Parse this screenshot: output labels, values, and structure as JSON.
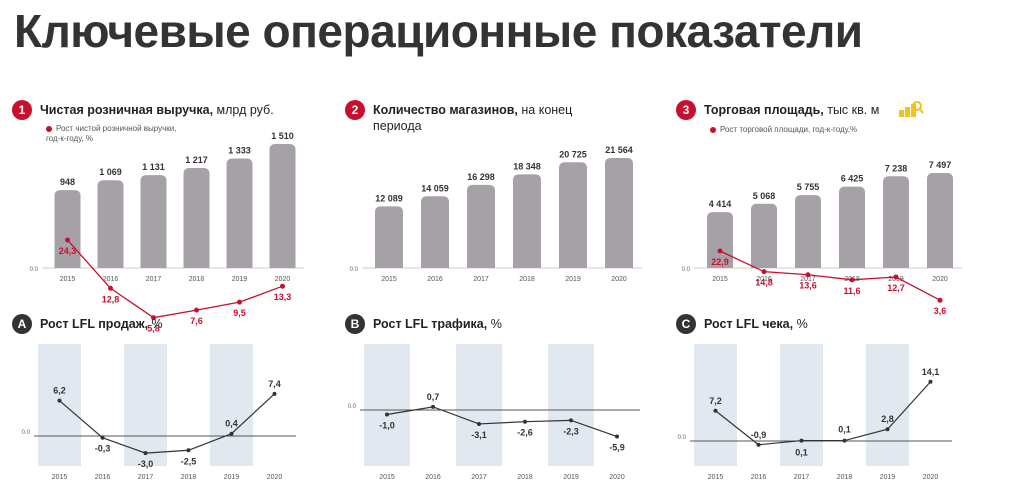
{
  "page_title": "Ключевые операционные показатели",
  "colors": {
    "accent": "#c8102e",
    "bar": "#a5a1a6",
    "band": "#e2e8ef",
    "line": "#333333",
    "badge_dark": "#333333"
  },
  "charts": [
    {
      "id": "1",
      "badge_style": "red",
      "title_bold": "Чистая розничная выручка,",
      "title_rest": " млрд руб.",
      "legend": "Рост чистой розничной выручки, год-к-году, %",
      "type": "bar_line",
      "categories": [
        "2015",
        "2016",
        "2017",
        "2018",
        "2019",
        "2020"
      ],
      "bar_labels": [
        "948",
        "1 069",
        "1 131",
        "1 217",
        "1 333",
        "1 510"
      ],
      "bar_values": [
        948,
        1069,
        1131,
        1217,
        1333,
        1510
      ],
      "line_labels": [
        "24,3",
        "12,8",
        "5,8",
        "7,6",
        "9,5",
        "13,3"
      ],
      "line_values": [
        24.3,
        12.8,
        5.8,
        7.6,
        9.5,
        13.3
      ],
      "zero_label": "0.0"
    },
    {
      "id": "2",
      "badge_style": "red",
      "title_bold": "Количество магазинов,",
      "title_rest": " на конец периода",
      "type": "bar",
      "categories": [
        "2015",
        "2016",
        "2017",
        "2018",
        "2019",
        "2020"
      ],
      "bar_labels": [
        "12 089",
        "14 059",
        "16 298",
        "18 348",
        "20 725",
        "21 564"
      ],
      "bar_values": [
        12089,
        14059,
        16298,
        18348,
        20725,
        21564
      ],
      "zero_label": "0.0"
    },
    {
      "id": "3",
      "badge_style": "red",
      "title_bold": "Торговая площадь,",
      "title_rest": " тыс кв. м",
      "legend": "Рост торговой площади, год-к-году,%",
      "icon": "coins-icon",
      "type": "bar_line",
      "categories": [
        "2015",
        "2016",
        "2017",
        "2018",
        "2019",
        "2020"
      ],
      "bar_labels": [
        "4 414",
        "5 068",
        "5 755",
        "6 425",
        "7 238",
        "7 497"
      ],
      "bar_values": [
        4414,
        5068,
        5755,
        6425,
        7238,
        7497
      ],
      "line_labels": [
        "22,9",
        "14,8",
        "13,6",
        "11,6",
        "12,7",
        "3,6"
      ],
      "line_values": [
        22.9,
        14.8,
        13.6,
        11.6,
        12.7,
        3.6
      ],
      "zero_label": "0.0"
    },
    {
      "id": "A",
      "badge_style": "dark",
      "title_bold": "Рост LFL продаж,",
      "title_rest": " %",
      "type": "line",
      "categories": [
        "2015",
        "2016",
        "2017",
        "2018",
        "2019",
        "2020"
      ],
      "line_labels": [
        "6,2",
        "-0,3",
        "-3,0",
        "-2,5",
        "0,4",
        "7,4"
      ],
      "line_values": [
        6.2,
        -0.3,
        -3.0,
        -2.5,
        0.4,
        7.4
      ],
      "zero_label": "0.0"
    },
    {
      "id": "B",
      "badge_style": "dark",
      "title_bold": "Рост LFL трафика,",
      "title_rest": " %",
      "type": "line",
      "categories": [
        "2015",
        "2016",
        "2017",
        "2018",
        "2019",
        "2020"
      ],
      "line_labels": [
        "-1,0",
        "0,7",
        "-3,1",
        "-2,6",
        "-2,3",
        "-5,9"
      ],
      "line_values": [
        -1.0,
        0.7,
        -3.1,
        -2.6,
        -2.3,
        -5.9
      ],
      "zero_label": "0.0"
    },
    {
      "id": "C",
      "badge_style": "dark",
      "title_bold": "Рост LFL чека,",
      "title_rest": " %",
      "type": "line",
      "categories": [
        "2015",
        "2016",
        "2017",
        "2018",
        "2019",
        "2020"
      ],
      "line_labels": [
        "7,2",
        "-0,9",
        "0,1",
        "0,1",
        "2,8",
        "14,1"
      ],
      "line_values": [
        7.2,
        -0.9,
        0.1,
        0.1,
        2.8,
        14.1
      ],
      "zero_label": "0.0"
    }
  ]
}
